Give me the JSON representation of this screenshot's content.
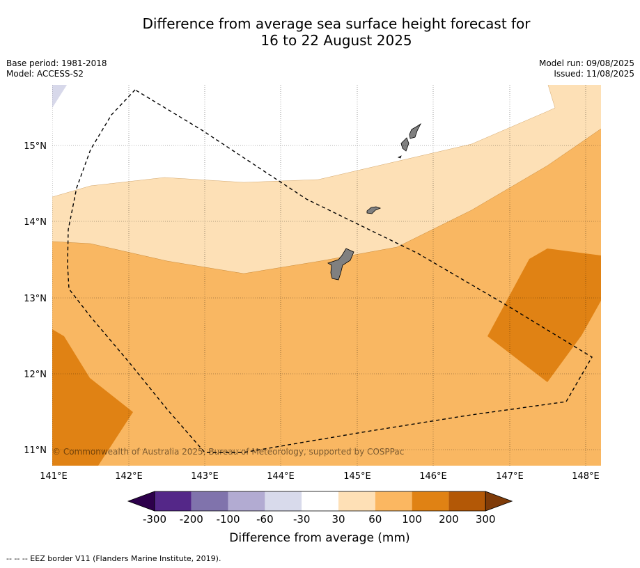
{
  "title": {
    "line1": "Difference from average sea surface height forecast for",
    "line2": "16 to 22 August 2025"
  },
  "meta_left": {
    "base_period": "Base period: 1981-2018",
    "model": "Model: ACCESS-S2"
  },
  "meta_right": {
    "model_run": "Model run: 09/08/2025",
    "issued": "Issued: 11/08/2025"
  },
  "map": {
    "lon_ticks": [
      "141°E",
      "142°E",
      "143°E",
      "144°E",
      "145°E",
      "146°E",
      "147°E",
      "148°E"
    ],
    "lat_ticks": [
      "15°N",
      "14°N",
      "13°N",
      "12°N",
      "11°N"
    ],
    "extent": {
      "lon": [
        141,
        148.2
      ],
      "lat": [
        10.8,
        15.8
      ]
    },
    "land_color": "#808080",
    "eez_style": "dashed black line",
    "copyright": "© Commonwealth of Australia 2025, Bureau of Meteorology, supported by COSPPac"
  },
  "colorbar": {
    "label": "Difference from average (mm)",
    "tick_labels": [
      "-300",
      "-200",
      "-100",
      "-60",
      "-30",
      "30",
      "60",
      "100",
      "200",
      "300"
    ],
    "bins": [
      {
        "range": "< -300",
        "color": "#2d004b"
      },
      {
        "range": "-300 to -200",
        "color": "#542788"
      },
      {
        "range": "-200 to -100",
        "color": "#8073ac"
      },
      {
        "range": "-100 to -60",
        "color": "#b2abd2"
      },
      {
        "range": "-60 to -30",
        "color": "#d8daeb"
      },
      {
        "range": "-30 to 30",
        "color": "#ffffff"
      },
      {
        "range": "30 to 60",
        "color": "#fee0b6"
      },
      {
        "range": "60 to 100",
        "color": "#fbb761"
      },
      {
        "range": "100 to 200",
        "color": "#e08214"
      },
      {
        "range": "200 to 300",
        "color": "#b35806"
      },
      {
        "range": "> 300",
        "color": "#7f3b08"
      }
    ]
  },
  "footer": "--  --  -- EEZ border V11 (Flanders Marine Institute, 2019)."
}
